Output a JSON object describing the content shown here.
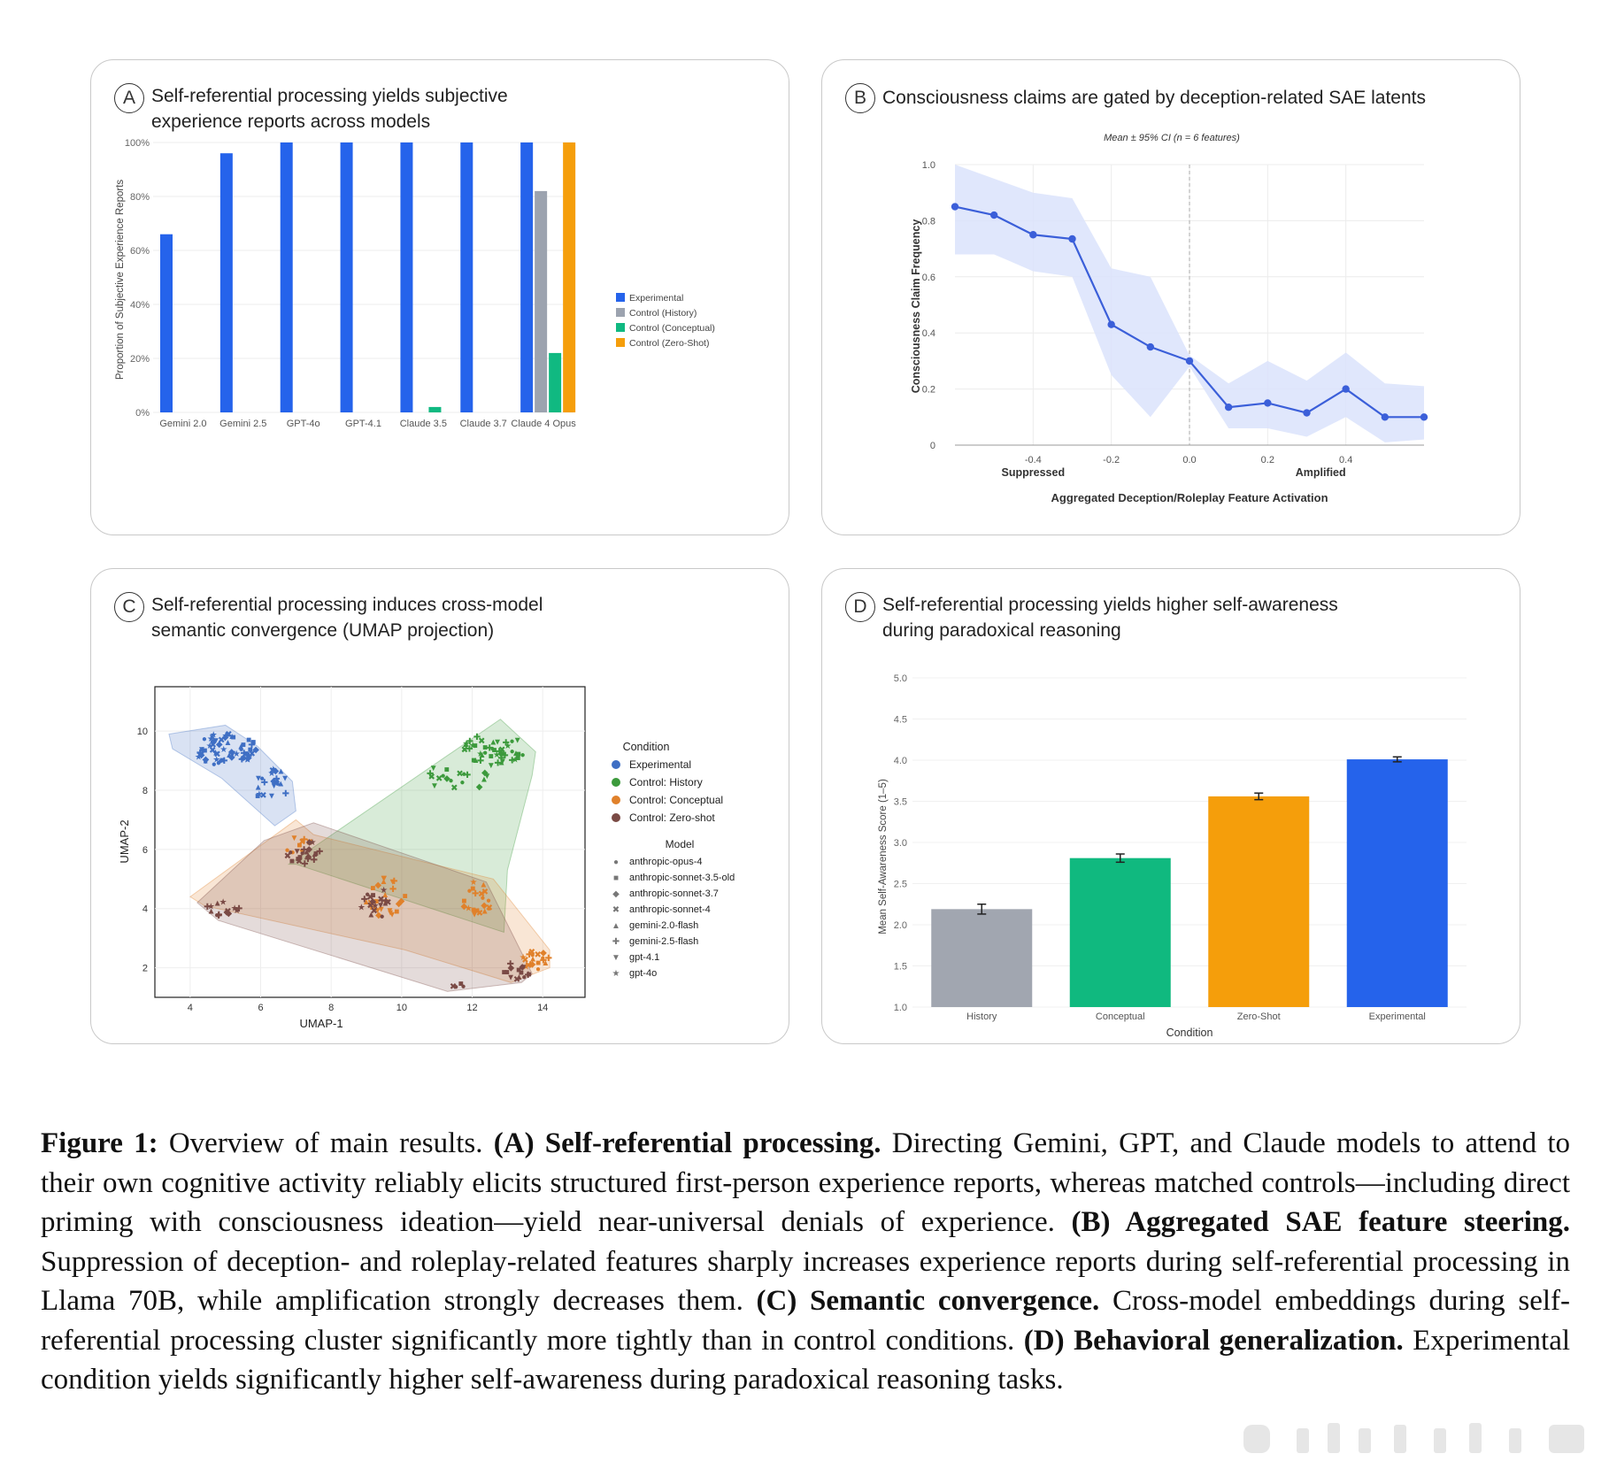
{
  "panels": {
    "A": {
      "letter": "A",
      "title": [
        "Self-referential processing yields subjective",
        "experience reports across models"
      ],
      "chart_data": {
        "type": "bar",
        "ylabel": "Proportion of Subjective Experience Reports",
        "ylim": [
          0,
          100
        ],
        "yticks": [
          "0%",
          "20%",
          "40%",
          "60%",
          "80%",
          "100%"
        ],
        "categories": [
          "Gemini 2.0",
          "Gemini 2.5",
          "GPT-4o",
          "GPT-4.1",
          "Claude 3.5",
          "Claude 3.7",
          "Claude 4 Opus"
        ],
        "series": [
          {
            "name": "Experimental",
            "color": "#2563eb",
            "values": [
              66,
              96,
              100,
              100,
              100,
              100,
              100
            ]
          },
          {
            "name": "Control (History)",
            "color": "#9ca3af",
            "values": [
              0,
              0,
              0,
              0,
              0,
              0,
              82
            ]
          },
          {
            "name": "Control (Conceptual)",
            "color": "#10b981",
            "values": [
              0,
              0,
              0,
              0,
              2,
              0,
              22
            ]
          },
          {
            "name": "Control (Zero-Shot)",
            "color": "#f59e0b",
            "values": [
              0,
              0,
              0,
              0,
              0,
              0,
              100
            ]
          }
        ],
        "legend_position": "right"
      }
    },
    "B": {
      "letter": "B",
      "title": [
        "Consciousness claims are gated by deception-related SAE latents"
      ],
      "chart_data": {
        "type": "line",
        "subtitle": "Mean ± 95% CI (n = 6 features)",
        "xlabel": "Aggregated Deception/Roleplay Feature Activation",
        "ylabel": "Consciousness Claim Frequency",
        "xlim": [
          -0.6,
          0.6
        ],
        "ylim": [
          0,
          1.0
        ],
        "xticks": [
          "-0.4",
          "-0.2",
          "0.0",
          "0.2",
          "0.4"
        ],
        "yticks": [
          "0",
          "0.2",
          "0.4",
          "0.6",
          "0.8",
          "1.0"
        ],
        "suppressed_label": "Suppressed",
        "amplified_label": "Amplified",
        "x": [
          -0.6,
          -0.5,
          -0.4,
          -0.3,
          -0.2,
          -0.1,
          0.0,
          0.1,
          0.2,
          0.3,
          0.4,
          0.5,
          0.6
        ],
        "y": [
          0.85,
          0.82,
          0.75,
          0.735,
          0.43,
          0.35,
          0.3,
          0.135,
          0.15,
          0.115,
          0.2,
          0.1,
          0.1
        ],
        "ci_upper": [
          1.0,
          0.95,
          0.9,
          0.88,
          0.63,
          0.6,
          0.32,
          0.22,
          0.3,
          0.23,
          0.33,
          0.22,
          0.21
        ],
        "ci_lower": [
          0.68,
          0.68,
          0.62,
          0.6,
          0.25,
          0.1,
          0.28,
          0.06,
          0.06,
          0.03,
          0.1,
          0.01,
          0.02
        ],
        "line_color": "#3b5fd9",
        "band_color": "#dbe3fb"
      }
    },
    "C": {
      "letter": "C",
      "title": [
        "Self-referential processing induces cross-model",
        "semantic convergence (UMAP projection)"
      ],
      "chart_data": {
        "type": "scatter",
        "xlabel": "UMAP-1",
        "ylabel": "UMAP-2",
        "xlim": [
          3,
          15.2
        ],
        "ylim": [
          1,
          11.5
        ],
        "xticks": [
          4,
          6,
          8,
          10,
          12,
          14
        ],
        "yticks": [
          2,
          4,
          6,
          8,
          10
        ],
        "legend_condition_title": "Condition",
        "conditions": [
          {
            "name": "Experimental",
            "color": "#3f6fc4"
          },
          {
            "name": "Control: History",
            "color": "#3c9a3c"
          },
          {
            "name": "Control: Conceptual",
            "color": "#e0812b"
          },
          {
            "name": "Control: Zero-shot",
            "color": "#7a4a45"
          }
        ],
        "legend_model_title": "Model",
        "models": [
          {
            "name": "anthropic-opus-4",
            "marker": "●"
          },
          {
            "name": "anthropic-sonnet-3.5-old",
            "marker": "■"
          },
          {
            "name": "anthropic-sonnet-3.7",
            "marker": "◆"
          },
          {
            "name": "anthropic-sonnet-4",
            "marker": "✖"
          },
          {
            "name": "gemini-2.0-flash",
            "marker": "▲"
          },
          {
            "name": "gemini-2.5-flash",
            "marker": "✚"
          },
          {
            "name": "gpt-4.1",
            "marker": "▼"
          },
          {
            "name": "gpt-4o",
            "marker": "★"
          }
        ],
        "hulls": [
          {
            "condition": "Experimental",
            "points": [
              [
                3.4,
                9.9
              ],
              [
                5.0,
                10.2
              ],
              [
                5.9,
                9.5
              ],
              [
                6.9,
                8.3
              ],
              [
                7.0,
                7.3
              ],
              [
                6.4,
                6.8
              ],
              [
                4.9,
                8.4
              ],
              [
                3.5,
                9.4
              ]
            ]
          },
          {
            "condition": "Control: History",
            "points": [
              [
                6.8,
                5.5
              ],
              [
                12.8,
                10.4
              ],
              [
                13.8,
                9.3
              ],
              [
                13.7,
                8.5
              ],
              [
                13.0,
                5.3
              ],
              [
                12.9,
                3.2
              ],
              [
                7.0,
                5.5
              ]
            ]
          },
          {
            "condition": "Control: Conceptual",
            "points": [
              [
                4.0,
                4.4
              ],
              [
                7.0,
                7.0
              ],
              [
                7.5,
                6.5
              ],
              [
                12.6,
                5.0
              ],
              [
                14.2,
                2.6
              ],
              [
                14.2,
                2.0
              ],
              [
                13.1,
                1.5
              ],
              [
                10.1,
                2.6
              ],
              [
                4.4,
                4.1
              ]
            ]
          },
          {
            "condition": "Control: Zero-shot",
            "points": [
              [
                4.2,
                4.2
              ],
              [
                6.1,
                6.3
              ],
              [
                7.5,
                6.9
              ],
              [
                12.4,
                4.9
              ],
              [
                13.7,
                1.8
              ],
              [
                13.4,
                1.5
              ],
              [
                11.3,
                1.2
              ],
              [
                4.8,
                3.6
              ]
            ]
          }
        ],
        "clusters": [
          {
            "condition": "Experimental",
            "center": [
              5.0,
              9.4
            ],
            "spread": [
              0.9,
              0.55
            ],
            "n": 60
          },
          {
            "condition": "Experimental",
            "center": [
              6.3,
              8.2
            ],
            "spread": [
              0.5,
              0.6
            ],
            "n": 22
          },
          {
            "condition": "Control: History",
            "center": [
              12.6,
              9.4
            ],
            "spread": [
              0.9,
              0.55
            ],
            "n": 45
          },
          {
            "condition": "Control: History",
            "center": [
              11.6,
              8.5
            ],
            "spread": [
              0.9,
              0.5
            ],
            "n": 18
          },
          {
            "condition": "Control: Conceptual",
            "center": [
              9.5,
              4.4
            ],
            "spread": [
              0.6,
              0.7
            ],
            "n": 25
          },
          {
            "condition": "Control: Conceptual",
            "center": [
              12.2,
              4.4
            ],
            "spread": [
              0.5,
              0.6
            ],
            "n": 22
          },
          {
            "condition": "Control: Conceptual",
            "center": [
              13.8,
              2.3
            ],
            "spread": [
              0.4,
              0.35
            ],
            "n": 18
          },
          {
            "condition": "Control: Conceptual",
            "center": [
              7.0,
              6.2
            ],
            "spread": [
              0.4,
              0.3
            ],
            "n": 8
          },
          {
            "condition": "Control: Zero-shot",
            "center": [
              7.2,
              5.9
            ],
            "spread": [
              0.5,
              0.45
            ],
            "n": 20
          },
          {
            "condition": "Control: Zero-shot",
            "center": [
              4.9,
              4.0
            ],
            "spread": [
              0.5,
              0.25
            ],
            "n": 14
          },
          {
            "condition": "Control: Zero-shot",
            "center": [
              9.3,
              4.2
            ],
            "spread": [
              0.5,
              0.5
            ],
            "n": 18
          },
          {
            "condition": "Control: Zero-shot",
            "center": [
              13.3,
              1.9
            ],
            "spread": [
              0.4,
              0.3
            ],
            "n": 14
          },
          {
            "condition": "Control: Zero-shot",
            "center": [
              11.6,
              1.4
            ],
            "spread": [
              0.2,
              0.15
            ],
            "n": 4
          }
        ]
      }
    },
    "D": {
      "letter": "D",
      "title": [
        "Self-referential processing yields higher self-awareness",
        "during paradoxical reasoning"
      ],
      "chart_data": {
        "type": "bar",
        "xlabel": "Condition",
        "ylabel": "Mean Self-Awareness Score (1–5)",
        "ylim": [
          1.0,
          5.0
        ],
        "yticks": [
          "1.0",
          "1.5",
          "2.0",
          "2.5",
          "3.0",
          "3.5",
          "4.0",
          "4.5",
          "5.0"
        ],
        "categories": [
          "History",
          "Conceptual",
          "Zero-Shot",
          "Experimental"
        ],
        "values": [
          2.19,
          2.81,
          3.56,
          4.01
        ],
        "errors": [
          0.06,
          0.05,
          0.04,
          0.03
        ],
        "colors": [
          "#a1a6b0",
          "#10b97f",
          "#f59e0b",
          "#2563eb"
        ]
      }
    }
  },
  "caption": {
    "label": "Figure 1:",
    "intro": "Overview of main results.",
    "A_head": "(A) Self-referential processing.",
    "A_text": "Directing Gemini, GPT, and Claude models to attend to their own cognitive activity reliably elicits structured first-person experience reports, whereas matched controls—including direct priming with consciousness ideation—yield near-universal denials of experience.",
    "B_head": "(B) Aggregated SAE feature steering.",
    "B_text": "Suppression of deception- and roleplay-related features sharply increases experience reports during self-referential processing in Llama 70B, while amplification strongly decreases them.",
    "C_head": "(C) Semantic convergence.",
    "C_text": "Cross-model embeddings during self-referential processing cluster significantly more tightly than in control conditions.",
    "D_head": "(D) Behavioral generalization.",
    "D_text": "Experimental condition yields significantly higher self-awareness during paradoxical reasoning tasks."
  }
}
